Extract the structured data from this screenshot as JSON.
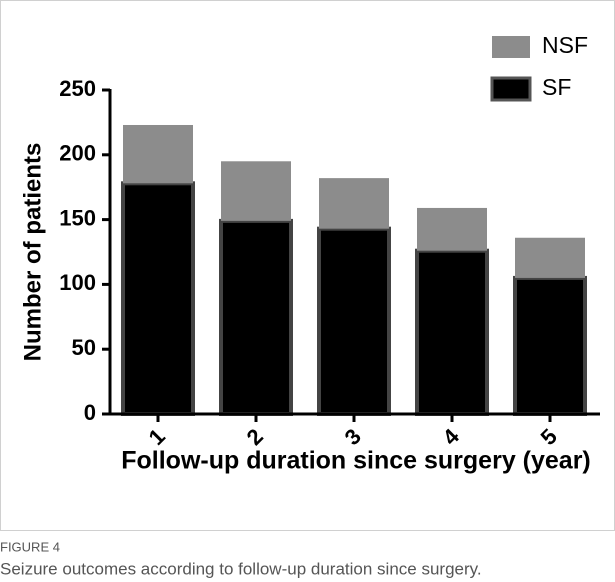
{
  "chart_data": {
    "type": "stacked_bar",
    "xlabel": "Follow-up duration since surgery (year)",
    "ylabel": "Number of patients",
    "categories": [
      "1",
      "2",
      "3",
      "4",
      "5"
    ],
    "series": [
      {
        "name": "SF",
        "color": "#000000",
        "values": [
          178,
          149,
          143,
          126,
          105
        ]
      },
      {
        "name": "NSF",
        "color": "#8c8c8c",
        "values": [
          45,
          46,
          39,
          33,
          31
        ]
      }
    ],
    "ylim": [
      0,
      250
    ],
    "yticks": [
      0,
      50,
      100,
      150,
      200,
      250
    ],
    "legend": "upper right",
    "figure_label": "FIGURE 4",
    "caption": "Seizure outcomes according to follow-up duration since surgery."
  }
}
